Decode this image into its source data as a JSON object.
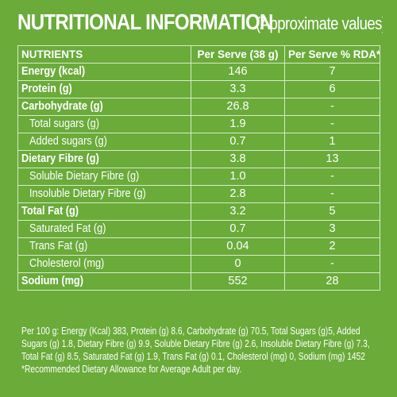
{
  "heading": {
    "title": "NUTRITIONAL INFORMATION",
    "subtitle": "(Approximate values)"
  },
  "table": {
    "headers": [
      "NUTRIENTS",
      "Per Serve (38 g)",
      "Per Serve % RDA*"
    ],
    "rows": [
      {
        "nutrient": "Energy (kcal)",
        "per_serve": "146",
        "rda": "7"
      },
      {
        "nutrient": "Protein (g)",
        "per_serve": "3.3",
        "rda": "6"
      },
      {
        "nutrient": "Carbohydrate (g)",
        "per_serve": "26.8",
        "rda": "-"
      },
      {
        "nutrient": "Total sugars (g)",
        "per_serve": "1.9",
        "rda": "-"
      },
      {
        "nutrient": "Added sugars (g)",
        "per_serve": "0.7",
        "rda": "1"
      },
      {
        "nutrient": "Dietary Fibre (g)",
        "per_serve": "3.8",
        "rda": "13"
      },
      {
        "nutrient": "Soluble Dietary Fibre (g)",
        "per_serve": "1.0",
        "rda": "-"
      },
      {
        "nutrient": "Insoluble Dietary Fibre (g)",
        "per_serve": "2.8",
        "rda": "-"
      },
      {
        "nutrient": "Total Fat (g)",
        "per_serve": "3.2",
        "rda": "5"
      },
      {
        "nutrient": "Saturated Fat (g)",
        "per_serve": "0.7",
        "rda": "3"
      },
      {
        "nutrient": "Trans Fat (g)",
        "per_serve": "0.04",
        "rda": "2"
      },
      {
        "nutrient": "Cholesterol (mg)",
        "per_serve": "0",
        "rda": "-"
      },
      {
        "nutrient": "Sodium (mg)",
        "per_serve": "552",
        "rda": "28"
      }
    ]
  },
  "footer": {
    "per100_line1": "Per 100 g: Energy (Kcal) 383, Protein (g) 8.6, Carbohydrate (g) 70.5, Total Sugars (g)5, Added",
    "per100_line2": "Sugars (g) 1.8, Dietary Fibre (g) 9.9, Soluble Dietary Fibre (g) 2.6, Insoluble Dietary Fibre (g) 7.3,",
    "per100_line3": "Total Fat (g) 8.5, Saturated Fat (g) 1.9, Trans Fat (g) 0.1, Cholesterol (mg) 0, Sodium (mg) 1452",
    "rda_note": "*Recommended Dietary Allowance for Average Adult per day."
  },
  "colors": {
    "background": "#6aab3a",
    "text": "#ffffff",
    "rule": "#d8ecc8"
  }
}
